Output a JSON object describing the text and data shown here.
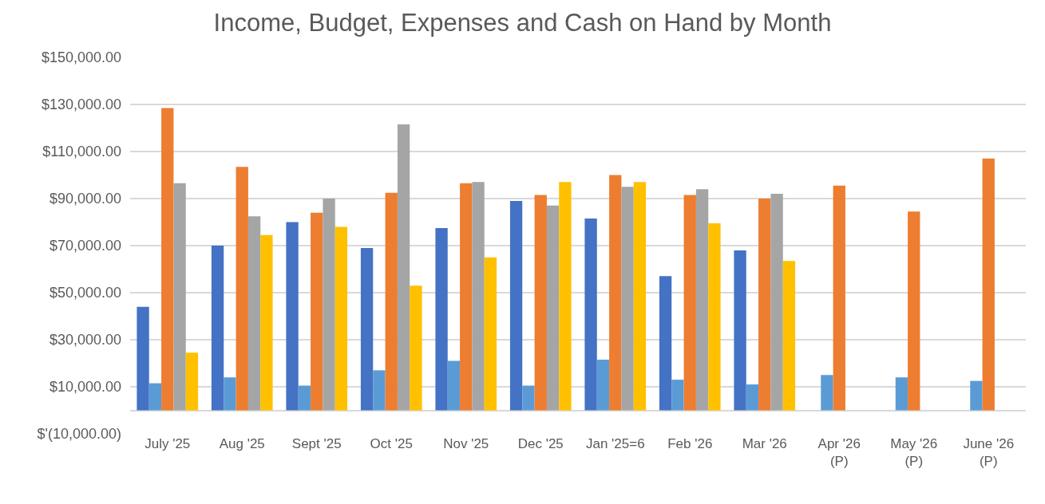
{
  "chart_data": {
    "type": "bar",
    "title": "Income, Budget, Expenses and Cash on Hand by Month",
    "categories": [
      "July '25",
      "Aug '25",
      "Sept '25",
      "Oct '25",
      "Nov '25",
      "Dec '25",
      "Jan '25=6",
      "Feb '26",
      "Mar '26",
      "Apr '26 (P)",
      "May '26 (P)",
      "June '26 (P)"
    ],
    "series": [
      {
        "color": "#4472c4",
        "values": [
          44000,
          70000,
          80000,
          69000,
          77500,
          89000,
          81500,
          57000,
          68000,
          null,
          null,
          null
        ]
      },
      {
        "color": "#5b9bd5",
        "values": [
          11500,
          14000,
          10500,
          17000,
          21000,
          10500,
          21500,
          13000,
          11000,
          15000,
          14000,
          12500
        ]
      },
      {
        "color": "#ed7d31",
        "values": [
          128500,
          103500,
          84000,
          92500,
          96500,
          91500,
          100000,
          91500,
          90000,
          95500,
          84500,
          107000
        ]
      },
      {
        "color": "#a5a5a5",
        "values": [
          96500,
          82500,
          90000,
          121500,
          97000,
          87000,
          95000,
          94000,
          92000,
          null,
          null,
          null
        ]
      },
      {
        "color": "#ffc000",
        "values": [
          24500,
          74500,
          78000,
          53000,
          65000,
          97000,
          97000,
          79500,
          63500,
          null,
          null,
          null
        ]
      }
    ],
    "ylim": [
      -10000,
      150000
    ],
    "yticks": [
      {
        "value": -10000,
        "label": "$'(10,000.00)"
      },
      {
        "value": 10000,
        "label": "$10,000.00"
      },
      {
        "value": 30000,
        "label": "$30,000.00"
      },
      {
        "value": 50000,
        "label": "$50,000.00"
      },
      {
        "value": 70000,
        "label": "$70,000.00"
      },
      {
        "value": 90000,
        "label": "$90,000.00"
      },
      {
        "value": 110000,
        "label": "$110,000.00"
      },
      {
        "value": 130000,
        "label": "$130,000.00"
      },
      {
        "value": 150000,
        "label": "$150,000.00"
      }
    ],
    "grid": "y"
  }
}
